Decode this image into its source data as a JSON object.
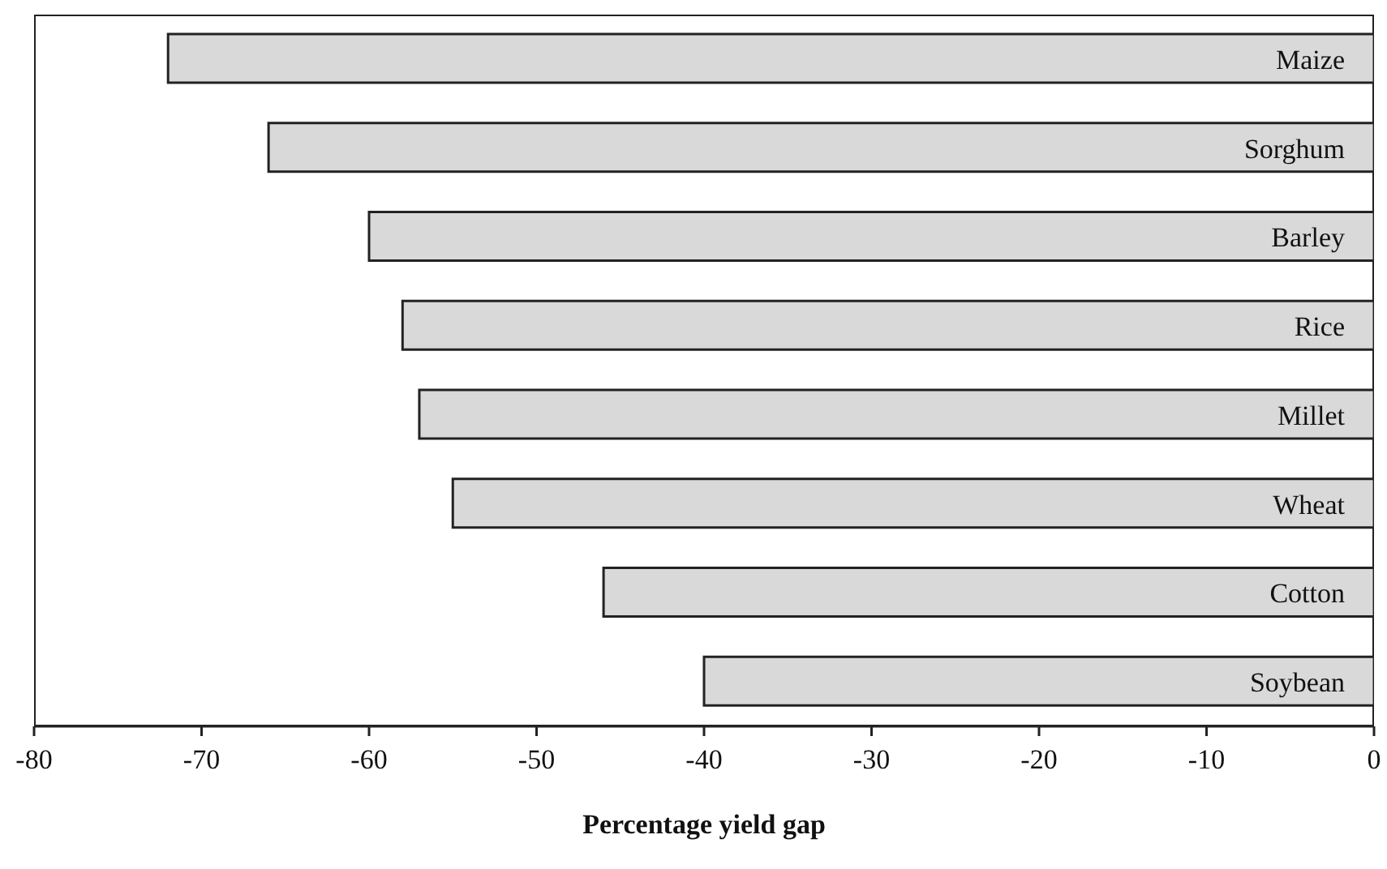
{
  "chart_data": {
    "type": "bar",
    "orientation": "horizontal",
    "xlabel": "Percentage yield gap",
    "categories": [
      "Maize",
      "Sorghum",
      "Barley",
      "Rice",
      "Millet",
      "Wheat",
      "Cotton",
      "Soybean"
    ],
    "values": [
      -72,
      -66,
      -60,
      -58,
      -57,
      -55,
      -46,
      -40
    ],
    "color": "#d9d9d9",
    "xlim": [
      -80,
      0
    ],
    "xticks": [
      -80,
      -70,
      -60,
      -50,
      -40,
      -30,
      -20,
      -10,
      0
    ],
    "grid": false
  }
}
